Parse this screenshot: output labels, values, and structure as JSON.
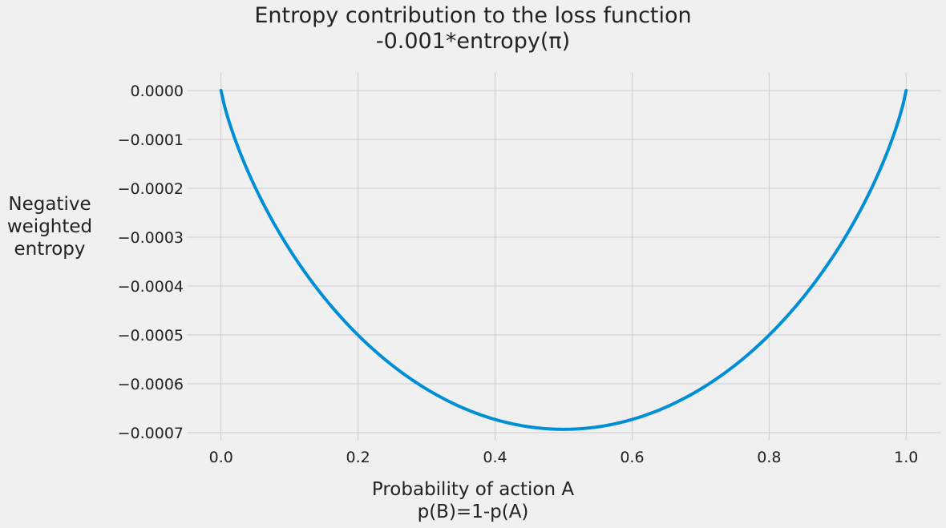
{
  "chart_data": {
    "type": "line",
    "title_lines": [
      "Entropy contribution to the loss function",
      "-0.001*entropy(π)"
    ],
    "xlabel_lines": [
      "Probability of action A",
      "p(B)=1-p(A)"
    ],
    "ylabel_lines": [
      "Negative",
      "weighted",
      "entropy"
    ],
    "xlim": [
      -0.05,
      1.05
    ],
    "ylim": [
      -0.0007,
      0.0
    ],
    "xticks": [
      0.0,
      0.2,
      0.4,
      0.6,
      0.8,
      1.0
    ],
    "xtick_labels": [
      "0.0",
      "0.2",
      "0.4",
      "0.6",
      "0.8",
      "1.0"
    ],
    "yticks": [
      0.0,
      -0.0001,
      -0.0002,
      -0.0003,
      -0.0004,
      -0.0005,
      -0.0006,
      -0.0007
    ],
    "ytick_labels": [
      "0.0000",
      "−0.0001",
      "−0.0002",
      "−0.0003",
      "−0.0004",
      "−0.0005",
      "−0.0006",
      "−0.0007"
    ],
    "grid": true,
    "series": [
      {
        "color": "#008fd5",
        "x": [
          0.0,
          0.01,
          0.05,
          0.1,
          0.15,
          0.2,
          0.25,
          0.3,
          0.35,
          0.4,
          0.45,
          0.5,
          0.55,
          0.6,
          0.65,
          0.7,
          0.75,
          0.8,
          0.85,
          0.9,
          0.95,
          0.99,
          1.0
        ],
        "y": [
          0.0,
          -5.6e-05,
          -0.000199,
          -0.000325,
          -0.000423,
          -0.0005,
          -0.000562,
          -0.000611,
          -0.000647,
          -0.000673,
          -0.000688,
          -0.000693,
          -0.000688,
          -0.000673,
          -0.000647,
          -0.000611,
          -0.000562,
          -0.0005,
          -0.000423,
          -0.000325,
          -0.000199,
          -5.6e-05,
          0.0
        ]
      }
    ]
  }
}
